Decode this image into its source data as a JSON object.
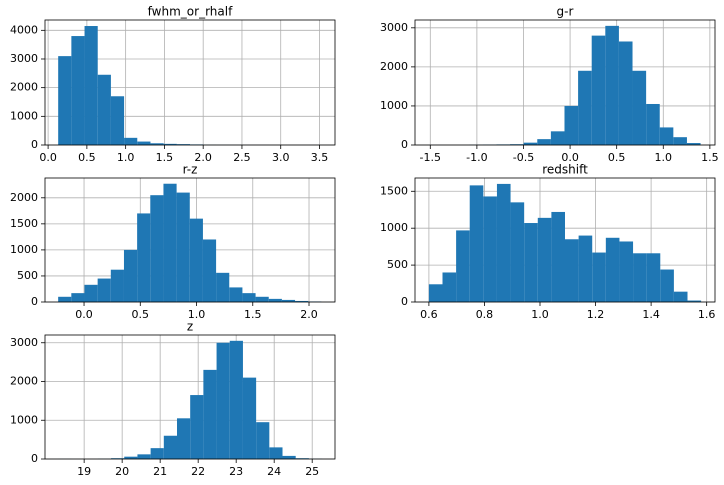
{
  "chart_data": [
    {
      "type": "histogram",
      "title": "fwhm_or_rhalf",
      "color": "#1f77b4",
      "grid": true,
      "bins": [
        0.13,
        0.3,
        0.47,
        0.64,
        0.81,
        0.98,
        1.15,
        1.32,
        1.49,
        1.66,
        1.83,
        2.0,
        2.17,
        2.34,
        2.51,
        2.68,
        2.85,
        3.02,
        3.19,
        3.36,
        3.53
      ],
      "values": [
        3100,
        3800,
        4150,
        2450,
        1700,
        250,
        120,
        60,
        40,
        30,
        20,
        5,
        3,
        2,
        1,
        1,
        0,
        0,
        0,
        1
      ],
      "xlim": [
        -0.04,
        3.7
      ],
      "xticks": [
        {
          "value": 0,
          "label": "0.0"
        },
        0.5,
        {
          "value": 1,
          "label": "1.0"
        },
        1.5,
        {
          "value": 2,
          "label": "2.0"
        },
        2.5,
        {
          "value": 3,
          "label": "3.0"
        },
        3.5
      ],
      "ylim": [
        0,
        4360
      ],
      "yticks": [
        0,
        1000,
        2000,
        3000,
        4000
      ]
    },
    {
      "type": "histogram",
      "title": "g-r",
      "color": "#1f77b4",
      "grid": true,
      "bins": [
        -1.52,
        -1.374,
        -1.228,
        -1.082,
        -0.936,
        -0.79,
        -0.644,
        -0.498,
        -0.352,
        -0.206,
        -0.06,
        0.086,
        0.232,
        0.378,
        0.524,
        0.67,
        0.816,
        0.962,
        1.108,
        1.254,
        1.4
      ],
      "values": [
        1,
        0,
        0,
        5,
        10,
        15,
        20,
        60,
        150,
        350,
        1000,
        1900,
        2800,
        3050,
        2650,
        1900,
        1050,
        450,
        200,
        50
      ],
      "xlim": [
        -1.664,
        1.555
      ],
      "xticks": [
        -1.5,
        {
          "value": -1,
          "label": "-1.0"
        },
        -0.5,
        {
          "value": 0,
          "label": "0.0"
        },
        0.5,
        {
          "value": 1,
          "label": "1.0"
        },
        1.5
      ],
      "ylim": [
        0,
        3200
      ],
      "yticks": [
        0,
        1000,
        2000,
        3000
      ]
    },
    {
      "type": "histogram",
      "title": "r-z",
      "color": "#1f77b4",
      "grid": true,
      "bins": [
        -0.23,
        -0.113,
        0.004,
        0.121,
        0.238,
        0.355,
        0.472,
        0.589,
        0.706,
        0.823,
        0.94,
        1.057,
        1.174,
        1.291,
        1.408,
        1.525,
        1.642,
        1.759,
        1.876,
        1.993,
        2.11
      ],
      "values": [
        100,
        170,
        330,
        450,
        620,
        1000,
        1700,
        2050,
        2270,
        2100,
        1600,
        1200,
        560,
        280,
        170,
        100,
        60,
        40,
        20,
        10
      ],
      "xlim": [
        -0.347,
        2.231
      ],
      "xticks": [
        {
          "value": 0,
          "label": "0.0"
        },
        0.5,
        {
          "value": 1,
          "label": "1.0"
        },
        1.5,
        {
          "value": 2,
          "label": "2.0"
        }
      ],
      "ylim": [
        0,
        2380
      ],
      "yticks": [
        0,
        500,
        1000,
        1500,
        2000
      ]
    },
    {
      "type": "histogram",
      "title": "redshift",
      "color": "#1f77b4",
      "grid": true,
      "bins": [
        0.6,
        0.649,
        0.698,
        0.747,
        0.796,
        0.845,
        0.894,
        0.943,
        0.992,
        1.041,
        1.09,
        1.139,
        1.188,
        1.237,
        1.286,
        1.335,
        1.384,
        1.433,
        1.482,
        1.531,
        1.58
      ],
      "values": [
        240,
        400,
        970,
        1580,
        1430,
        1600,
        1350,
        1070,
        1140,
        1220,
        850,
        900,
        670,
        870,
        820,
        660,
        660,
        440,
        140,
        20
      ],
      "xlim": [
        0.55,
        1.63
      ],
      "xticks": [
        0.6,
        0.8,
        {
          "value": 1,
          "label": "1.0"
        },
        1.2,
        1.4,
        1.6
      ],
      "ylim": [
        0,
        1680
      ],
      "yticks": [
        0,
        500,
        1000,
        1500
      ]
    },
    {
      "type": "histogram",
      "title": "z",
      "color": "#1f77b4",
      "grid": true,
      "bins": [
        18.32,
        18.667,
        19.014,
        19.361,
        19.708,
        20.055,
        20.402,
        20.749,
        21.096,
        21.443,
        21.79,
        22.137,
        22.484,
        22.831,
        23.178,
        23.525,
        23.872,
        24.219,
        24.566,
        24.913,
        25.26
      ],
      "values": [
        2,
        0,
        0,
        5,
        20,
        60,
        120,
        280,
        600,
        1050,
        1650,
        2300,
        3000,
        3050,
        2100,
        950,
        300,
        80,
        20,
        5
      ],
      "xlim": [
        17.97,
        25.6
      ],
      "xticks": [
        19,
        20,
        21,
        22,
        23,
        24,
        25
      ],
      "ylim": [
        0,
        3200
      ],
      "yticks": [
        0,
        1000,
        2000,
        3000
      ]
    }
  ]
}
